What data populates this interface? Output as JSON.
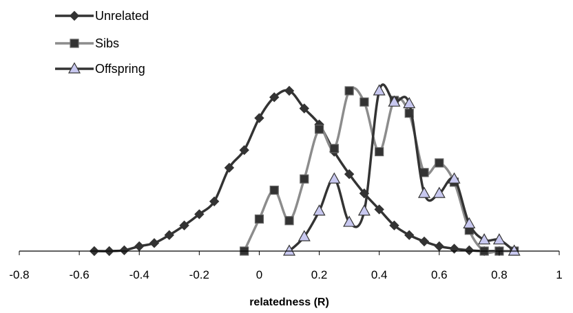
{
  "chart_data": {
    "type": "line",
    "title": "",
    "xlabel": "relatedness (R)",
    "ylabel": "",
    "xlim": [
      -0.8,
      1.0
    ],
    "ylim": [
      0,
      1.0
    ],
    "x_ticks": [
      "-0.8",
      "-0.6",
      "-0.4",
      "-0.2",
      "0",
      "0.2",
      "0.4",
      "0.6",
      "0.8",
      "1"
    ],
    "y_axis_visible": false,
    "grid": false,
    "legend_position": "top-left",
    "smooth": true,
    "series": [
      {
        "name": "Unrelated",
        "marker": "diamond",
        "color": "#333333",
        "marker_fill": "#333333",
        "points": [
          [
            -0.55,
            0.0
          ],
          [
            -0.5,
            0.0
          ],
          [
            -0.45,
            0.005
          ],
          [
            -0.4,
            0.03
          ],
          [
            -0.35,
            0.05
          ],
          [
            -0.3,
            0.1
          ],
          [
            -0.25,
            0.16
          ],
          [
            -0.2,
            0.23
          ],
          [
            -0.15,
            0.31
          ],
          [
            -0.1,
            0.52
          ],
          [
            -0.05,
            0.63
          ],
          [
            0.0,
            0.83
          ],
          [
            0.05,
            0.96
          ],
          [
            0.1,
            1.0
          ],
          [
            0.15,
            0.89
          ],
          [
            0.2,
            0.79
          ],
          [
            0.25,
            0.62
          ],
          [
            0.3,
            0.48
          ],
          [
            0.35,
            0.36
          ],
          [
            0.4,
            0.26
          ],
          [
            0.45,
            0.16
          ],
          [
            0.5,
            0.1
          ],
          [
            0.55,
            0.06
          ],
          [
            0.6,
            0.03
          ],
          [
            0.65,
            0.015
          ],
          [
            0.7,
            0.005
          ],
          [
            0.75,
            0.0
          ],
          [
            0.8,
            0.0
          ]
        ]
      },
      {
        "name": "Sibs",
        "marker": "square",
        "color": "#8c8c8c",
        "marker_fill": "#333333",
        "points": [
          [
            -0.05,
            0.0
          ],
          [
            0.0,
            0.2
          ],
          [
            0.05,
            0.38
          ],
          [
            0.1,
            0.19
          ],
          [
            0.15,
            0.45
          ],
          [
            0.2,
            0.76
          ],
          [
            0.25,
            0.64
          ],
          [
            0.3,
            1.0
          ],
          [
            0.35,
            0.93
          ],
          [
            0.4,
            0.62
          ],
          [
            0.45,
            0.94
          ],
          [
            0.5,
            0.86
          ],
          [
            0.55,
            0.49
          ],
          [
            0.6,
            0.55
          ],
          [
            0.65,
            0.43
          ],
          [
            0.7,
            0.13
          ],
          [
            0.75,
            0.0
          ],
          [
            0.8,
            0.0
          ],
          [
            0.85,
            0.0
          ]
        ]
      },
      {
        "name": "Offspring",
        "marker": "triangle",
        "color": "#333333",
        "marker_fill": "#c8c8f0",
        "points": [
          [
            0.1,
            0.0
          ],
          [
            0.15,
            0.09
          ],
          [
            0.2,
            0.25
          ],
          [
            0.25,
            0.45
          ],
          [
            0.3,
            0.18
          ],
          [
            0.35,
            0.25
          ],
          [
            0.4,
            1.0
          ],
          [
            0.45,
            0.93
          ],
          [
            0.5,
            0.92
          ],
          [
            0.55,
            0.36
          ],
          [
            0.6,
            0.36
          ],
          [
            0.65,
            0.45
          ],
          [
            0.7,
            0.17
          ],
          [
            0.75,
            0.07
          ],
          [
            0.8,
            0.07
          ],
          [
            0.85,
            0.0
          ]
        ]
      }
    ]
  }
}
